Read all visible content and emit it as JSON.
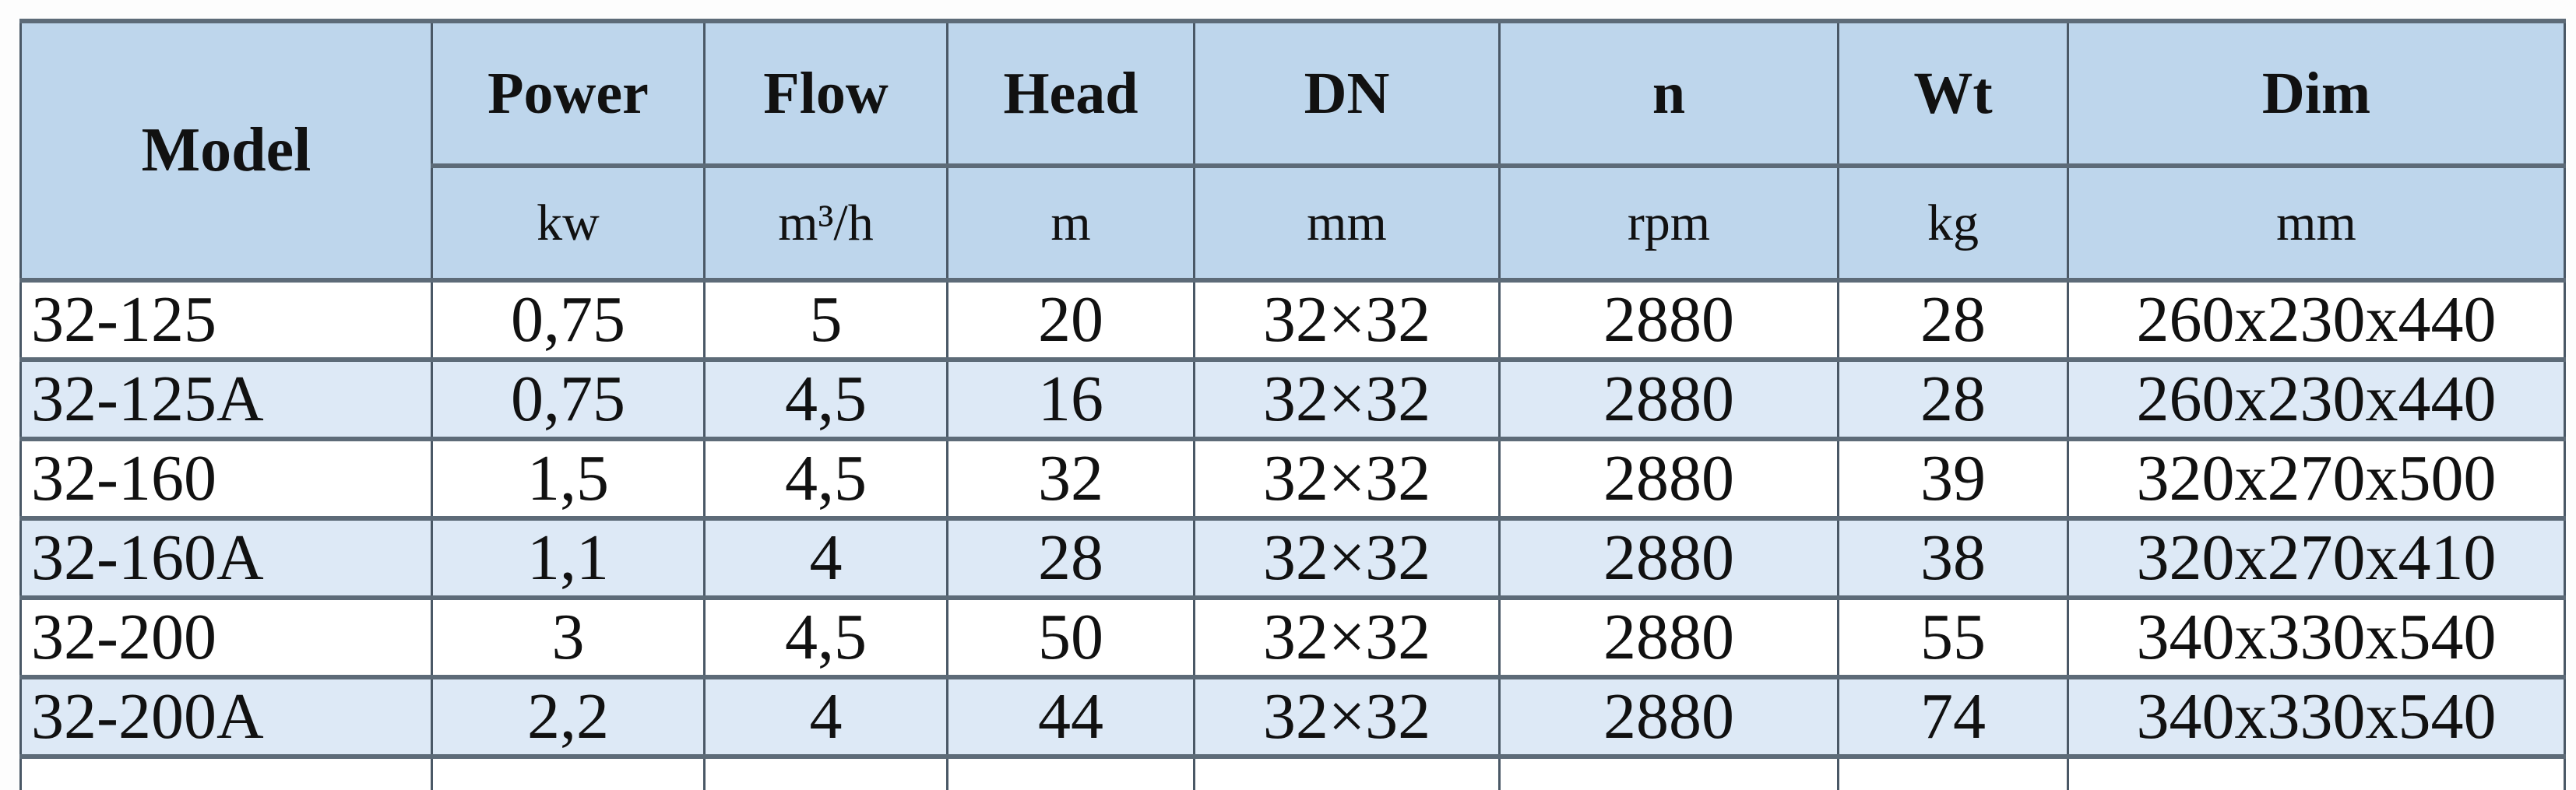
{
  "table": {
    "headers": {
      "model": "Model",
      "columns": [
        {
          "label": "Power",
          "unit": "kw"
        },
        {
          "label": "Flow",
          "unit": "m³/h"
        },
        {
          "label": "Head",
          "unit": "m"
        },
        {
          "label": "DN",
          "unit": "mm"
        },
        {
          "label": "n",
          "unit": "rpm"
        },
        {
          "label": "Wt",
          "unit": "kg"
        },
        {
          "label": "Dim",
          "unit": "mm"
        }
      ]
    },
    "rows": [
      [
        "32-125",
        "0,75",
        "5",
        "20",
        "32×32",
        "2880",
        "28",
        "260x230x440"
      ],
      [
        "32-125A",
        "0,75",
        "4,5",
        "16",
        "32×32",
        "2880",
        "28",
        "260x230x440"
      ],
      [
        "32-160",
        "1,5",
        "4,5",
        "32",
        "32×32",
        "2880",
        "39",
        "320x270x500"
      ],
      [
        "32-160A",
        "1,1",
        "4",
        "28",
        "32×32",
        "2880",
        "38",
        "320x270x410"
      ],
      [
        "32-200",
        "3",
        "4,5",
        "50",
        "32×32",
        "2880",
        "55",
        "340x330x540"
      ],
      [
        "32-200A",
        "2,2",
        "4",
        "44",
        "32×32",
        "2880",
        "74",
        "340x330x540"
      ]
    ],
    "colors": {
      "header_bg": "#bed6ec",
      "alt_row_bg": "#dde9f6",
      "border": "#5d6b78"
    }
  }
}
